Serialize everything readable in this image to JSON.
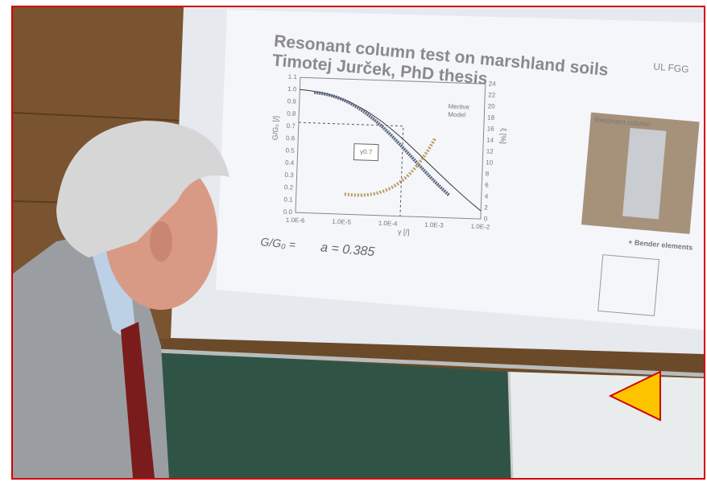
{
  "slide": {
    "title_line1": "Resonant column test on marshland soils",
    "title_line2": "Timotej Jurček, PhD thesis",
    "logo": "UL FGG",
    "chart": {
      "y_label": "G/G₀ [/]",
      "y2_label": "ξ [%]",
      "x_label": "γ [/]",
      "y_ticks": [
        "1.1",
        "1.0",
        "0.9",
        "0.8",
        "0.7",
        "0.6",
        "0.5",
        "0.4",
        "0.3",
        "0.2",
        "0.1",
        "0.0"
      ],
      "y2_ticks": [
        "24",
        "22",
        "20",
        "18",
        "16",
        "14",
        "12",
        "10",
        "8",
        "6",
        "4",
        "2",
        "0"
      ],
      "x_ticks": [
        "1.0E-6",
        "1.0E-5",
        "1.0E-4",
        "1.0E-3",
        "1.0E-2"
      ],
      "legend": [
        "Meritve",
        "Model"
      ],
      "annotation": "γ0.7"
    },
    "formula": "a = 0.385",
    "photo_caption": "Resonant column",
    "diagram_caption": "+ Bender elements"
  }
}
